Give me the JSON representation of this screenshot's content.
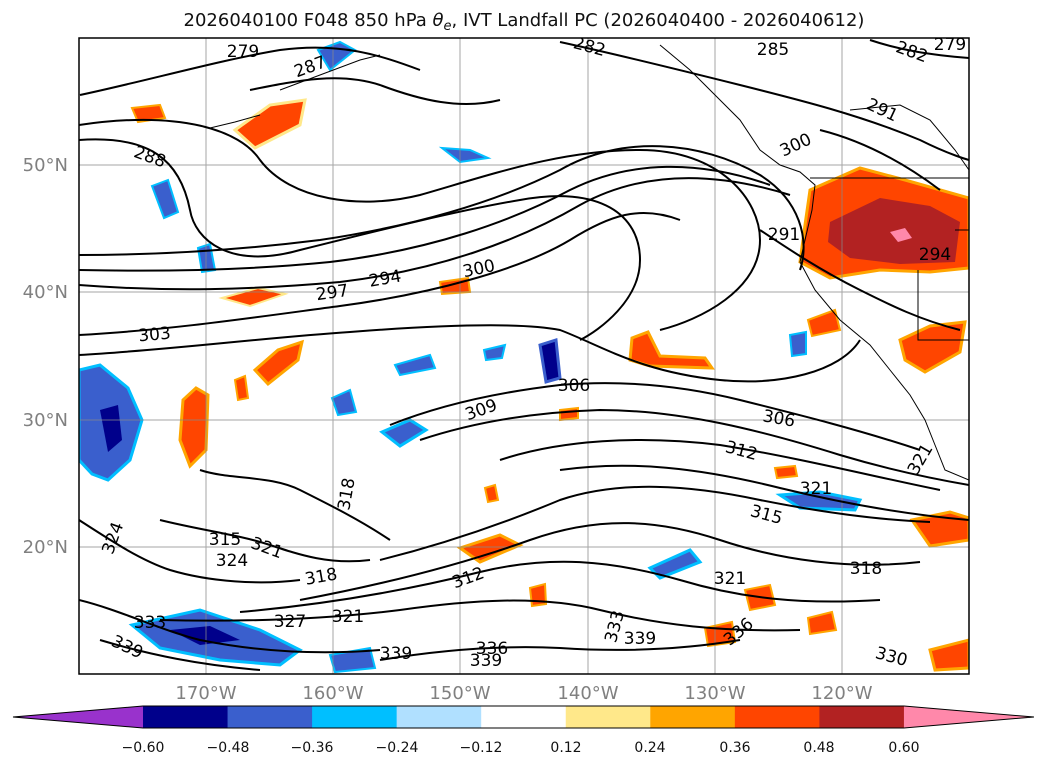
{
  "chart_data": {
    "type": "contour-map",
    "title_parts": {
      "prefix": "2026040100 F048 850 hPa ",
      "theta": "θ",
      "sub": "e",
      "suffix": ", IVT Landfall PC (2026040400 - 2026040612)"
    },
    "lat_ticks": [
      "50°N",
      "40°N",
      "30°N",
      "20°N"
    ],
    "lon_ticks": [
      "170°W",
      "160°W",
      "150°W",
      "140°W",
      "130°W",
      "120°W"
    ],
    "extent": {
      "lon_min": -180,
      "lon_max": -110,
      "lat_min": 10,
      "lat_max": 60
    },
    "grid": true,
    "theta_e_contour_labels": [
      "279",
      "287",
      "282",
      "285",
      "282",
      "279",
      "288",
      "291",
      "300",
      "291",
      "294",
      "297",
      "294",
      "300",
      "303",
      "306",
      "309",
      "306",
      "312",
      "315",
      "321",
      "321",
      "318",
      "315",
      "321",
      "324",
      "324",
      "318",
      "327",
      "321",
      "312",
      "321",
      "318",
      "333",
      "339",
      "339",
      "339",
      "336",
      "333",
      "339",
      "336",
      "330"
    ],
    "colorbar": {
      "levels": [
        -0.6,
        -0.48,
        -0.36,
        -0.24,
        -0.12,
        0.12,
        0.24,
        0.36,
        0.48,
        0.6
      ],
      "tick_labels": [
        "−0.60",
        "−0.48",
        "−0.36",
        "−0.24",
        "−0.12",
        "0.12",
        "0.24",
        "0.36",
        "0.48",
        "0.60"
      ],
      "colors": [
        "#9932cc",
        "#00008b",
        "#3a5fcd",
        "#00bfff",
        "#b0e0ff",
        "#ffffff",
        "#ffe88a",
        "#ffa500",
        "#ff4500",
        "#b22222",
        "#ff88aa"
      ],
      "extend": "both"
    }
  }
}
